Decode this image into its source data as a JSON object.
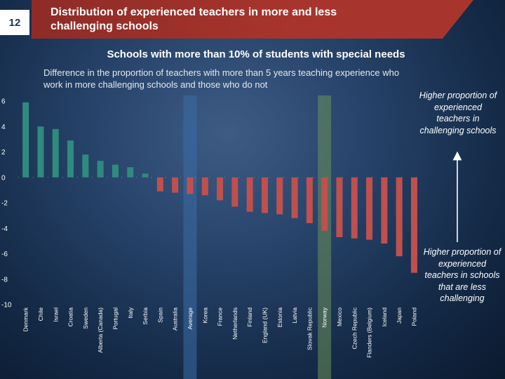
{
  "slide": {
    "number": "12"
  },
  "header": {
    "title": "Distribution of experienced teachers in more and less challenging schools"
  },
  "subtitle": "Schools with more than 10% of students with special needs",
  "description": "Difference in the proportion of teachers with more than 5 years teaching experience who work in more challenging schools and those who do not",
  "annotations": {
    "top": "Higher proportion of experienced teachers in challenging schools",
    "bottom": "Higher proportion of experienced teachers in schools that are less challenging"
  },
  "colors": {
    "positive": "#2e8b7e",
    "negative": "#c0504d",
    "highlight_average": "#3a6ea5",
    "highlight_norway": "#6b8f5a",
    "label_text": "#ffffff"
  },
  "chart_data": {
    "type": "bar",
    "title": "Schools with more than 10% of students with special needs",
    "ylabel": "Difference in the proportion of teachers with more than 5 years teaching experience who work in more challenging schools and those who do not",
    "ylim": [
      -10,
      6
    ],
    "yticks": [
      6,
      4,
      2,
      0,
      -2,
      -4,
      -6,
      -8,
      -10
    ],
    "highlighted": [
      "Average",
      "Norway"
    ],
    "categories": [
      "Denmark",
      "Chile",
      "Israel",
      "Croatia",
      "Sweden",
      "Alberta (Canada)",
      "Portugal",
      "Italy",
      "Serbia",
      "Spain",
      "Australia",
      "Average",
      "Korea",
      "France",
      "Netherlands",
      "Finland",
      "England (UK)",
      "Estonia",
      "Latvia",
      "Slovak Republic",
      "Norway",
      "Mexico",
      "Czech Republic",
      "Flanders (Belgium)",
      "Iceland",
      "Japan",
      "Poland"
    ],
    "values": [
      5.9,
      4.0,
      3.8,
      2.9,
      1.8,
      1.3,
      1.0,
      0.8,
      0.3,
      -1.1,
      -1.2,
      -1.3,
      -1.4,
      -1.8,
      -2.3,
      -2.7,
      -2.8,
      -2.9,
      -3.2,
      -3.6,
      -4.2,
      -4.7,
      -4.8,
      -4.9,
      -5.2,
      -6.2,
      -7.5
    ]
  }
}
